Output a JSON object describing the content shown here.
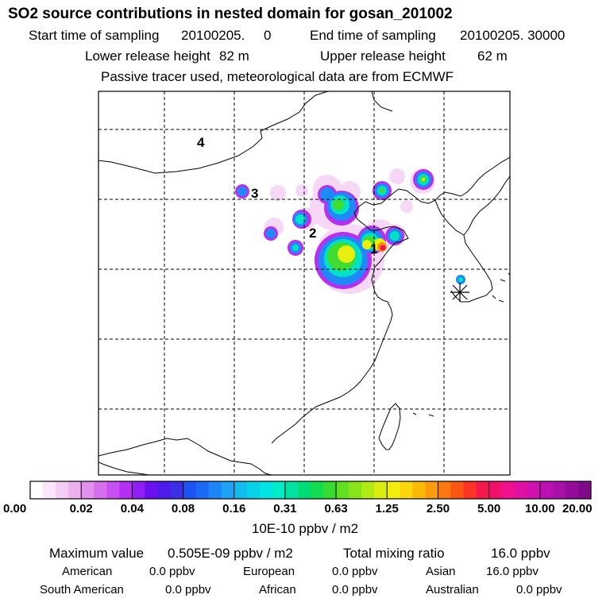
{
  "header": {
    "title": "SO2 source contributions in nested domain for gosan_201002",
    "start_label": "Start time of sampling",
    "start_value": "20100205.     0",
    "end_label": "End time of sampling",
    "end_value": "20100205. 30000",
    "lower_label": "Lower release height",
    "lower_value": "82 m",
    "upper_label": "Upper release height",
    "upper_value": "62 m",
    "tracer_note": "Passive tracer used, meteorological data are from ECMWF"
  },
  "map": {
    "source_labels": [
      "1",
      "2",
      "3",
      "4"
    ],
    "receptor_marker": "receptor-asterisk"
  },
  "colorbar": {
    "tick_labels": [
      "0.00",
      "0.02",
      "0.04",
      "0.08",
      "0.16",
      "0.31",
      "0.63",
      "1.25",
      "2.50",
      "5.00",
      "10.00",
      "20.00"
    ],
    "colors": [
      "#ffffff",
      "#fbe6fb",
      "#f5ccf5",
      "#efb0f0",
      "#e290ee",
      "#d56fec",
      "#c84ff0",
      "#b52ff2",
      "#8f1ff2",
      "#6a10ee",
      "#4c1aea",
      "#3b2ee4",
      "#1a52f4",
      "#1a6af6",
      "#1e86f8",
      "#1ea2f6",
      "#10bcec",
      "#08d2e8",
      "#00e4e4",
      "#00ecc8",
      "#00e2a0",
      "#00dc78",
      "#10dc50",
      "#38dc30",
      "#60e020",
      "#88e418",
      "#b0ea14",
      "#d8ef10",
      "#f2ee0c",
      "#fcd608",
      "#fcba08",
      "#fc9c0c",
      "#fc7810",
      "#fc5614",
      "#fc3426",
      "#f6184a",
      "#f2106c",
      "#f0108e",
      "#e010a4",
      "#d010b0",
      "#bc10b4",
      "#a810a8",
      "#940c9a",
      "#80088a"
    ],
    "units": "10E-10 ppbv / m2"
  },
  "summary": {
    "max_label": "Maximum value",
    "max_value": "0.505E-09 ppbv / m2",
    "total_label": "Total mixing ratio",
    "total_value": "16.0 ppbv",
    "regions": [
      {
        "name": "American",
        "value": "0.0 ppbv"
      },
      {
        "name": "European",
        "value": "0.0 ppbv"
      },
      {
        "name": "Asian",
        "value": "16.0 ppbv"
      },
      {
        "name": "South American",
        "value": "0.0 ppbv"
      },
      {
        "name": "African",
        "value": "0.0 ppbv"
      },
      {
        "name": "Australian",
        "value": "0.0 ppbv"
      }
    ]
  }
}
